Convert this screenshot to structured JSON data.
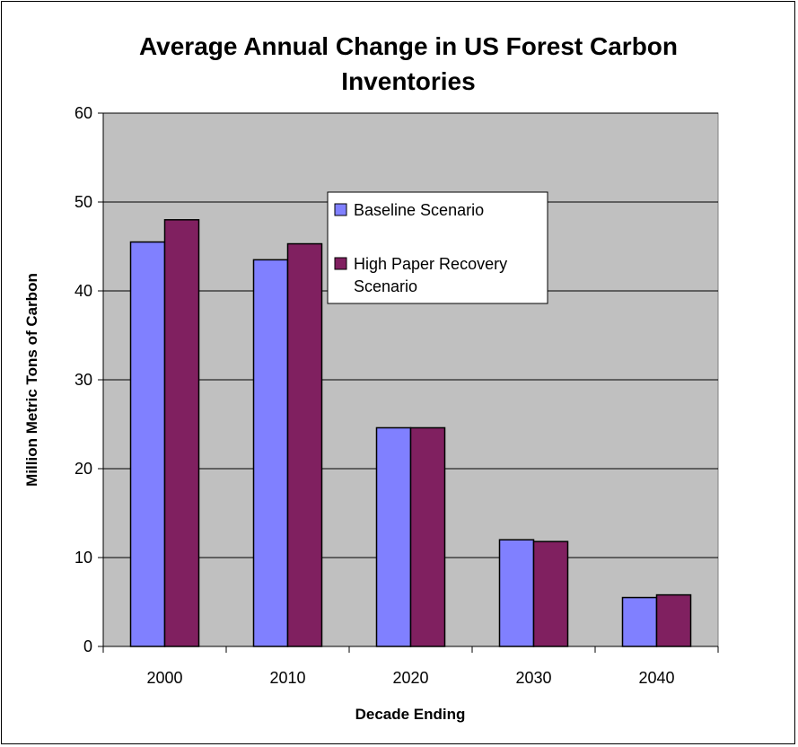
{
  "chart_data": {
    "type": "bar",
    "title": [
      "Average Annual Change in US Forest Carbon",
      "Inventories"
    ],
    "xlabel": "Decade Ending",
    "ylabel": "Million Metric Tons of Carbon",
    "categories": [
      "2000",
      "2010",
      "2020",
      "2030",
      "2040"
    ],
    "ylim": [
      0,
      60
    ],
    "yticks": [
      "0",
      "10",
      "20",
      "30",
      "40",
      "50",
      "60"
    ],
    "grid": true,
    "legend_position": "center",
    "series": [
      {
        "name": "Baseline Scenario",
        "values": [
          45.5,
          43.5,
          24.6,
          12.0,
          5.5
        ],
        "color": "#8080FF"
      },
      {
        "name": "High Paper Recovery Scenario",
        "legend_lines": [
          "High Paper Recovery",
          "Scenario"
        ],
        "values": [
          48.0,
          45.3,
          24.6,
          11.8,
          5.8
        ],
        "color": "#802060"
      }
    ],
    "plot_background": "#C0C0C0",
    "gridline_color": "#000000"
  }
}
